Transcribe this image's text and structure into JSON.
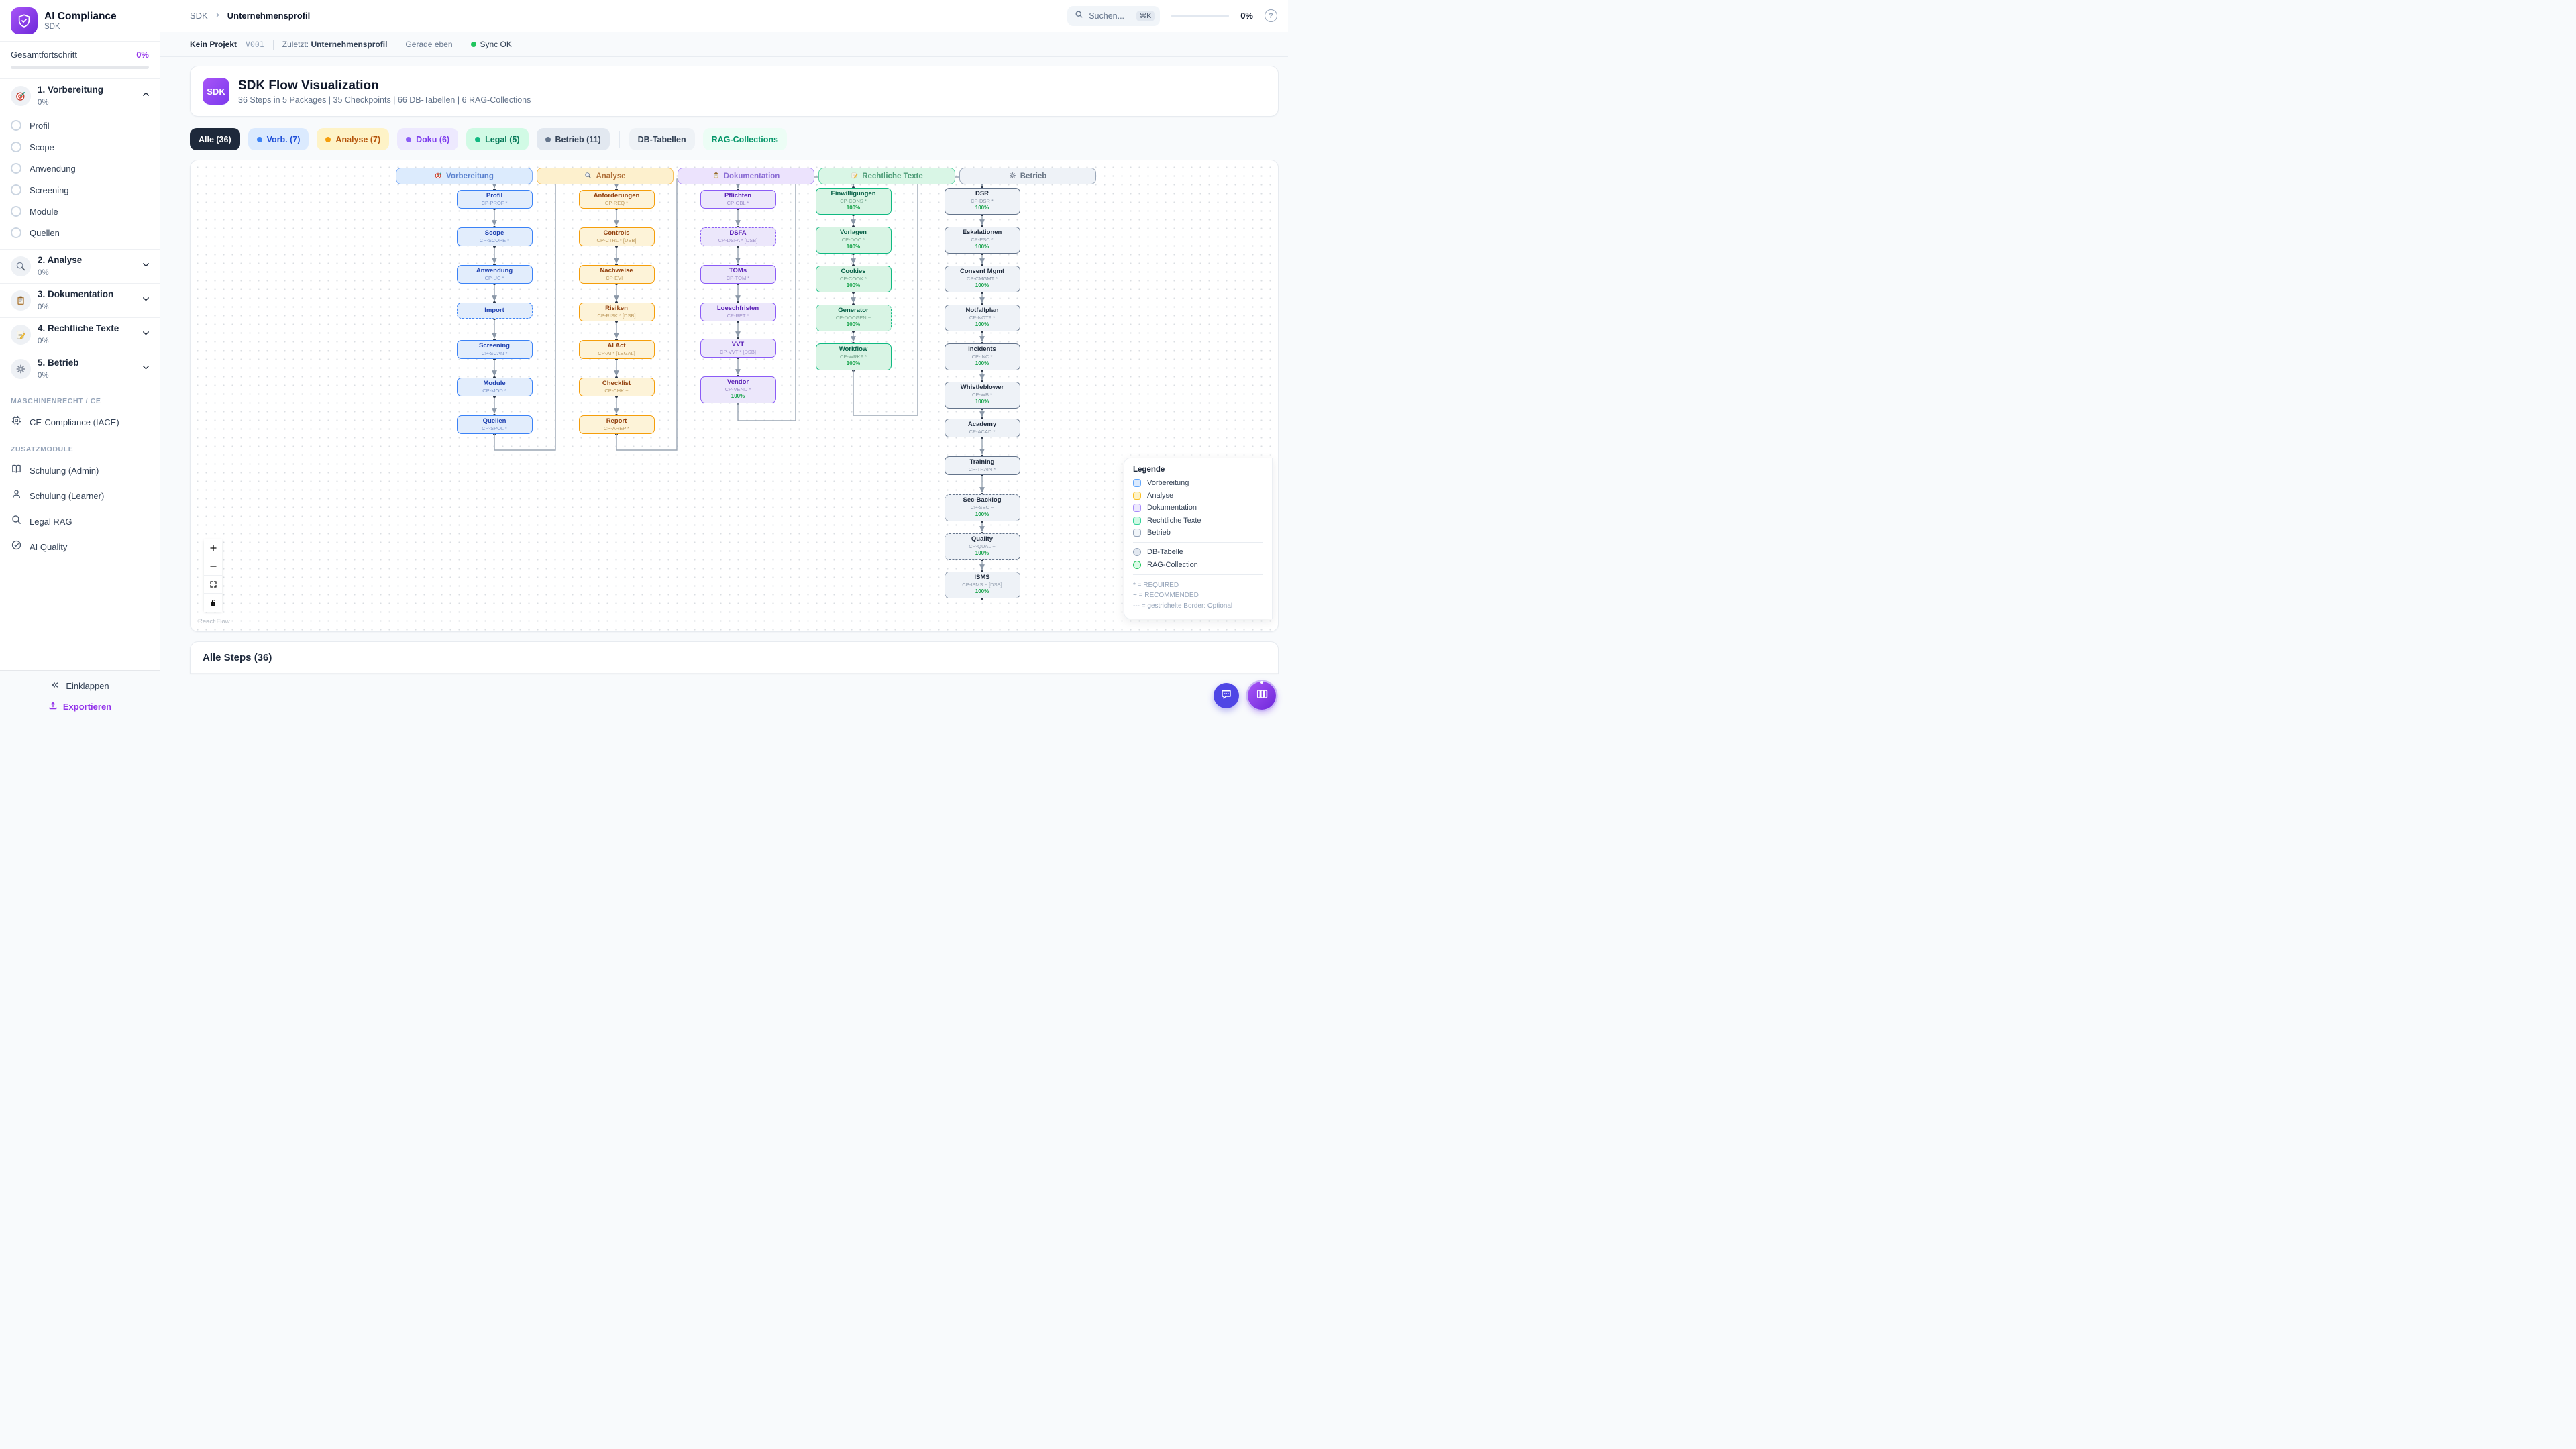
{
  "app": {
    "name": "AI Compliance",
    "subtitle": "SDK"
  },
  "sidebar": {
    "overall_label": "Gesamtfortschritt",
    "overall_value": "0%",
    "sections": [
      {
        "icon": "target",
        "label": "1. Vorbereitung",
        "progress": "0%",
        "expanded": true,
        "items": [
          "Profil",
          "Scope",
          "Anwendung",
          "Screening",
          "Module",
          "Quellen"
        ]
      },
      {
        "icon": "search",
        "label": "2. Analyse",
        "progress": "0%",
        "expanded": false,
        "items": []
      },
      {
        "icon": "clipboard",
        "label": "3. Dokumentation",
        "progress": "0%",
        "expanded": false,
        "items": []
      },
      {
        "icon": "pencil",
        "label": "4. Rechtliche Texte",
        "progress": "0%",
        "expanded": false,
        "items": []
      },
      {
        "icon": "gear",
        "label": "5. Betrieb",
        "progress": "0%",
        "expanded": false,
        "items": []
      }
    ],
    "group1_label": "MASCHINENRECHT / CE",
    "group1_items": [
      {
        "icon": "chip",
        "label": "CE-Compliance (IACE)"
      }
    ],
    "group2_label": "ZUSATZMODULE",
    "group2_items": [
      {
        "icon": "book",
        "label": "Schulung (Admin)"
      },
      {
        "icon": "person",
        "label": "Schulung (Learner)"
      },
      {
        "icon": "search-plain",
        "label": "Legal RAG"
      },
      {
        "icon": "check-circle",
        "label": "AI Quality"
      }
    ],
    "collapse_label": "Einklappen",
    "export_label": "Exportieren"
  },
  "header": {
    "breadcrumb_root": "SDK",
    "breadcrumb_current": "Unternehmensprofil",
    "search_placeholder": "Suchen...",
    "search_shortcut": "⌘K",
    "progress": "0%"
  },
  "statusbar": {
    "project": "Kein Projekt",
    "version": "V001",
    "last_label": "Zuletzt:",
    "last_value": "Unternehmensprofil",
    "time": "Gerade eben",
    "sync": "Sync OK"
  },
  "hero": {
    "badge": "SDK",
    "title": "SDK Flow Visualization",
    "subtitle": "36 Steps in 5 Packages | 35 Checkpoints | 66 DB-Tabellen | 6 RAG-Collections"
  },
  "filters": [
    {
      "label": "Alle (36)",
      "bg": "#1e293b",
      "color": "#ffffff",
      "dot": ""
    },
    {
      "label": "Vorb. (7)",
      "bg": "#dbeafe",
      "color": "#1d4ed8",
      "dot": "#3b82f6"
    },
    {
      "label": "Analyse (7)",
      "bg": "#fef3c7",
      "color": "#b45309",
      "dot": "#f59e0b"
    },
    {
      "label": "Doku (6)",
      "bg": "#ede9fe",
      "color": "#7c3aed",
      "dot": "#8b5cf6"
    },
    {
      "label": "Legal (5)",
      "bg": "#d1fae5",
      "color": "#047857",
      "dot": "#10b981"
    },
    {
      "label": "Betrieb (11)",
      "bg": "#e2e8f0",
      "color": "#334155",
      "dot": "#64748b"
    },
    {
      "label": "DB-Tabellen",
      "bg": "#eef2f6",
      "color": "#334155",
      "dot": "",
      "divider_before": true
    },
    {
      "label": "RAG-Collections",
      "bg": "#ecfdf5",
      "color": "#059669",
      "dot": ""
    }
  ],
  "flow": {
    "attribution": "React Flow",
    "columns": [
      {
        "id": "vorbereitung",
        "label": "Vorbereitung",
        "icon": "target",
        "colors": {
          "border": "#3b82f6",
          "bg": "#e2edfc",
          "title": "#1e40af",
          "code": "#7a93c9",
          "hborder": "#7cabf5",
          "hbg": "#dcebfd",
          "htext": "#5b82cf"
        },
        "nodes": [
          {
            "title": "Profil",
            "code": "CP-PROF *"
          },
          {
            "title": "Scope",
            "code": "CP-SCOPE *"
          },
          {
            "title": "Anwendung",
            "code": "CP-UC *"
          },
          {
            "title": "Import",
            "code": "",
            "dashed": true
          },
          {
            "title": "Screening",
            "code": "CP-SCAN *"
          },
          {
            "title": "Module",
            "code": "CP-MOD *"
          },
          {
            "title": "Quellen",
            "code": "CP-SPOL *"
          }
        ]
      },
      {
        "id": "analyse",
        "label": "Analyse",
        "icon": "search",
        "colors": {
          "border": "#f59e0b",
          "bg": "#fdf3d8",
          "title": "#92400e",
          "code": "#bd9a5e",
          "hborder": "#f7c05b",
          "hbg": "#fdf0cd",
          "htext": "#b0713a"
        },
        "nodes": [
          {
            "title": "Anforderungen",
            "code": "CP-REQ *"
          },
          {
            "title": "Controls",
            "code": "CP-CTRL * [DSB]"
          },
          {
            "title": "Nachweise",
            "code": "CP-EVI ~"
          },
          {
            "title": "Risiken",
            "code": "CP-RISK * [DSB]"
          },
          {
            "title": "AI Act",
            "code": "CP-AI * [LEGAL]"
          },
          {
            "title": "Checklist",
            "code": "CP-CHK ~"
          },
          {
            "title": "Report",
            "code": "CP-AREP *"
          }
        ]
      },
      {
        "id": "dokumentation",
        "label": "Dokumentation",
        "icon": "clipboard",
        "colors": {
          "border": "#8b5cf6",
          "bg": "#ece7fb",
          "title": "#5b21b6",
          "code": "#9d8fc9",
          "hborder": "#b394f8",
          "hbg": "#ece3fd",
          "htext": "#8b6cd4"
        },
        "nodes": [
          {
            "title": "Pflichten",
            "code": "CP-OBL *"
          },
          {
            "title": "DSFA",
            "code": "CP-DSFA * [DSB]",
            "dashed": true
          },
          {
            "title": "TOMs",
            "code": "CP-TOM *"
          },
          {
            "title": "Loeschfristen",
            "code": "CP-RET *"
          },
          {
            "title": "VVT",
            "code": "CP-VVT * [DSB]"
          },
          {
            "title": "Vendor",
            "code": "CP-VEND *",
            "progress": "100%"
          }
        ]
      },
      {
        "id": "legal",
        "label": "Rechtliche Texte",
        "icon": "pencil",
        "colors": {
          "border": "#10b981",
          "bg": "#d8f4e4",
          "title": "#065f46",
          "code": "#74a48c",
          "hborder": "#5fd3a5",
          "hbg": "#d9f6e6",
          "htext": "#4d9c77"
        },
        "nodes": [
          {
            "title": "Einwilligungen",
            "code": "CP-CONS *",
            "progress": "100%"
          },
          {
            "title": "Vorlagen",
            "code": "CP-DOC *",
            "progress": "100%"
          },
          {
            "title": "Cookies",
            "code": "CP-COOK *",
            "progress": "100%"
          },
          {
            "title": "Generator",
            "code": "CP-DOCGEN ~",
            "progress": "100%",
            "dashed": true
          },
          {
            "title": "Workflow",
            "code": "CP-WRKF *",
            "progress": "100%"
          }
        ]
      },
      {
        "id": "betrieb",
        "label": "Betrieb",
        "icon": "gear",
        "colors": {
          "border": "#64748b",
          "bg": "#eef2f7",
          "title": "#1e293b",
          "code": "#8b97a8",
          "hborder": "#9aa7b8",
          "hbg": "#eef2f7",
          "htext": "#6b7786"
        },
        "nodes": [
          {
            "title": "DSR",
            "code": "CP-DSR *",
            "progress": "100%"
          },
          {
            "title": "Eskalationen",
            "code": "CP-ESC *",
            "progress": "100%"
          },
          {
            "title": "Consent Mgmt",
            "code": "CP-CMGMT *",
            "progress": "100%"
          },
          {
            "title": "Notfallplan",
            "code": "CP-NOTF *",
            "progress": "100%"
          },
          {
            "title": "Incidents",
            "code": "CP-INC *",
            "progress": "100%"
          },
          {
            "title": "Whistleblower",
            "code": "CP-WB *",
            "progress": "100%"
          },
          {
            "title": "Academy",
            "code": "CP-ACAD *"
          },
          {
            "title": "Training",
            "code": "CP-TRAIN *"
          },
          {
            "title": "Sec-Backlog",
            "code": "CP-SEC ~",
            "progress": "100%",
            "dashed": true
          },
          {
            "title": "Quality",
            "code": "CP-QUAL ~",
            "progress": "100%",
            "dashed": true
          },
          {
            "title": "ISMS",
            "code": "CP-ISMS ~ [DSB]",
            "progress": "100%",
            "dashed": true
          }
        ]
      }
    ],
    "legend": {
      "title": "Legende",
      "categories": [
        {
          "label": "Vorbereitung",
          "border": "#60a5fa",
          "bg": "#dbeafe"
        },
        {
          "label": "Analyse",
          "border": "#fbbf24",
          "bg": "#fef3c7"
        },
        {
          "label": "Dokumentation",
          "border": "#a78bfa",
          "bg": "#ede9fe"
        },
        {
          "label": "Rechtliche Texte",
          "border": "#34d399",
          "bg": "#d1fae5"
        },
        {
          "label": "Betrieb",
          "border": "#94a3b8",
          "bg": "#f1f5f9"
        }
      ],
      "shapes": [
        {
          "label": "DB-Tabelle",
          "border": "#94a3b8",
          "bg": "#e2e8f0"
        },
        {
          "label": "RAG-Collection",
          "border": "#22c55e",
          "bg": "#dcfce7"
        }
      ],
      "notes": [
        "* = REQUIRED",
        "~ = RECOMMENDED",
        "--- = gestrichelte Border: Optional"
      ]
    }
  },
  "bottom": {
    "title": "Alle Steps (36)"
  },
  "colors": {
    "accent": "#7c3aed",
    "progress_green": "#22c55e",
    "edge": "#94a3b8"
  }
}
